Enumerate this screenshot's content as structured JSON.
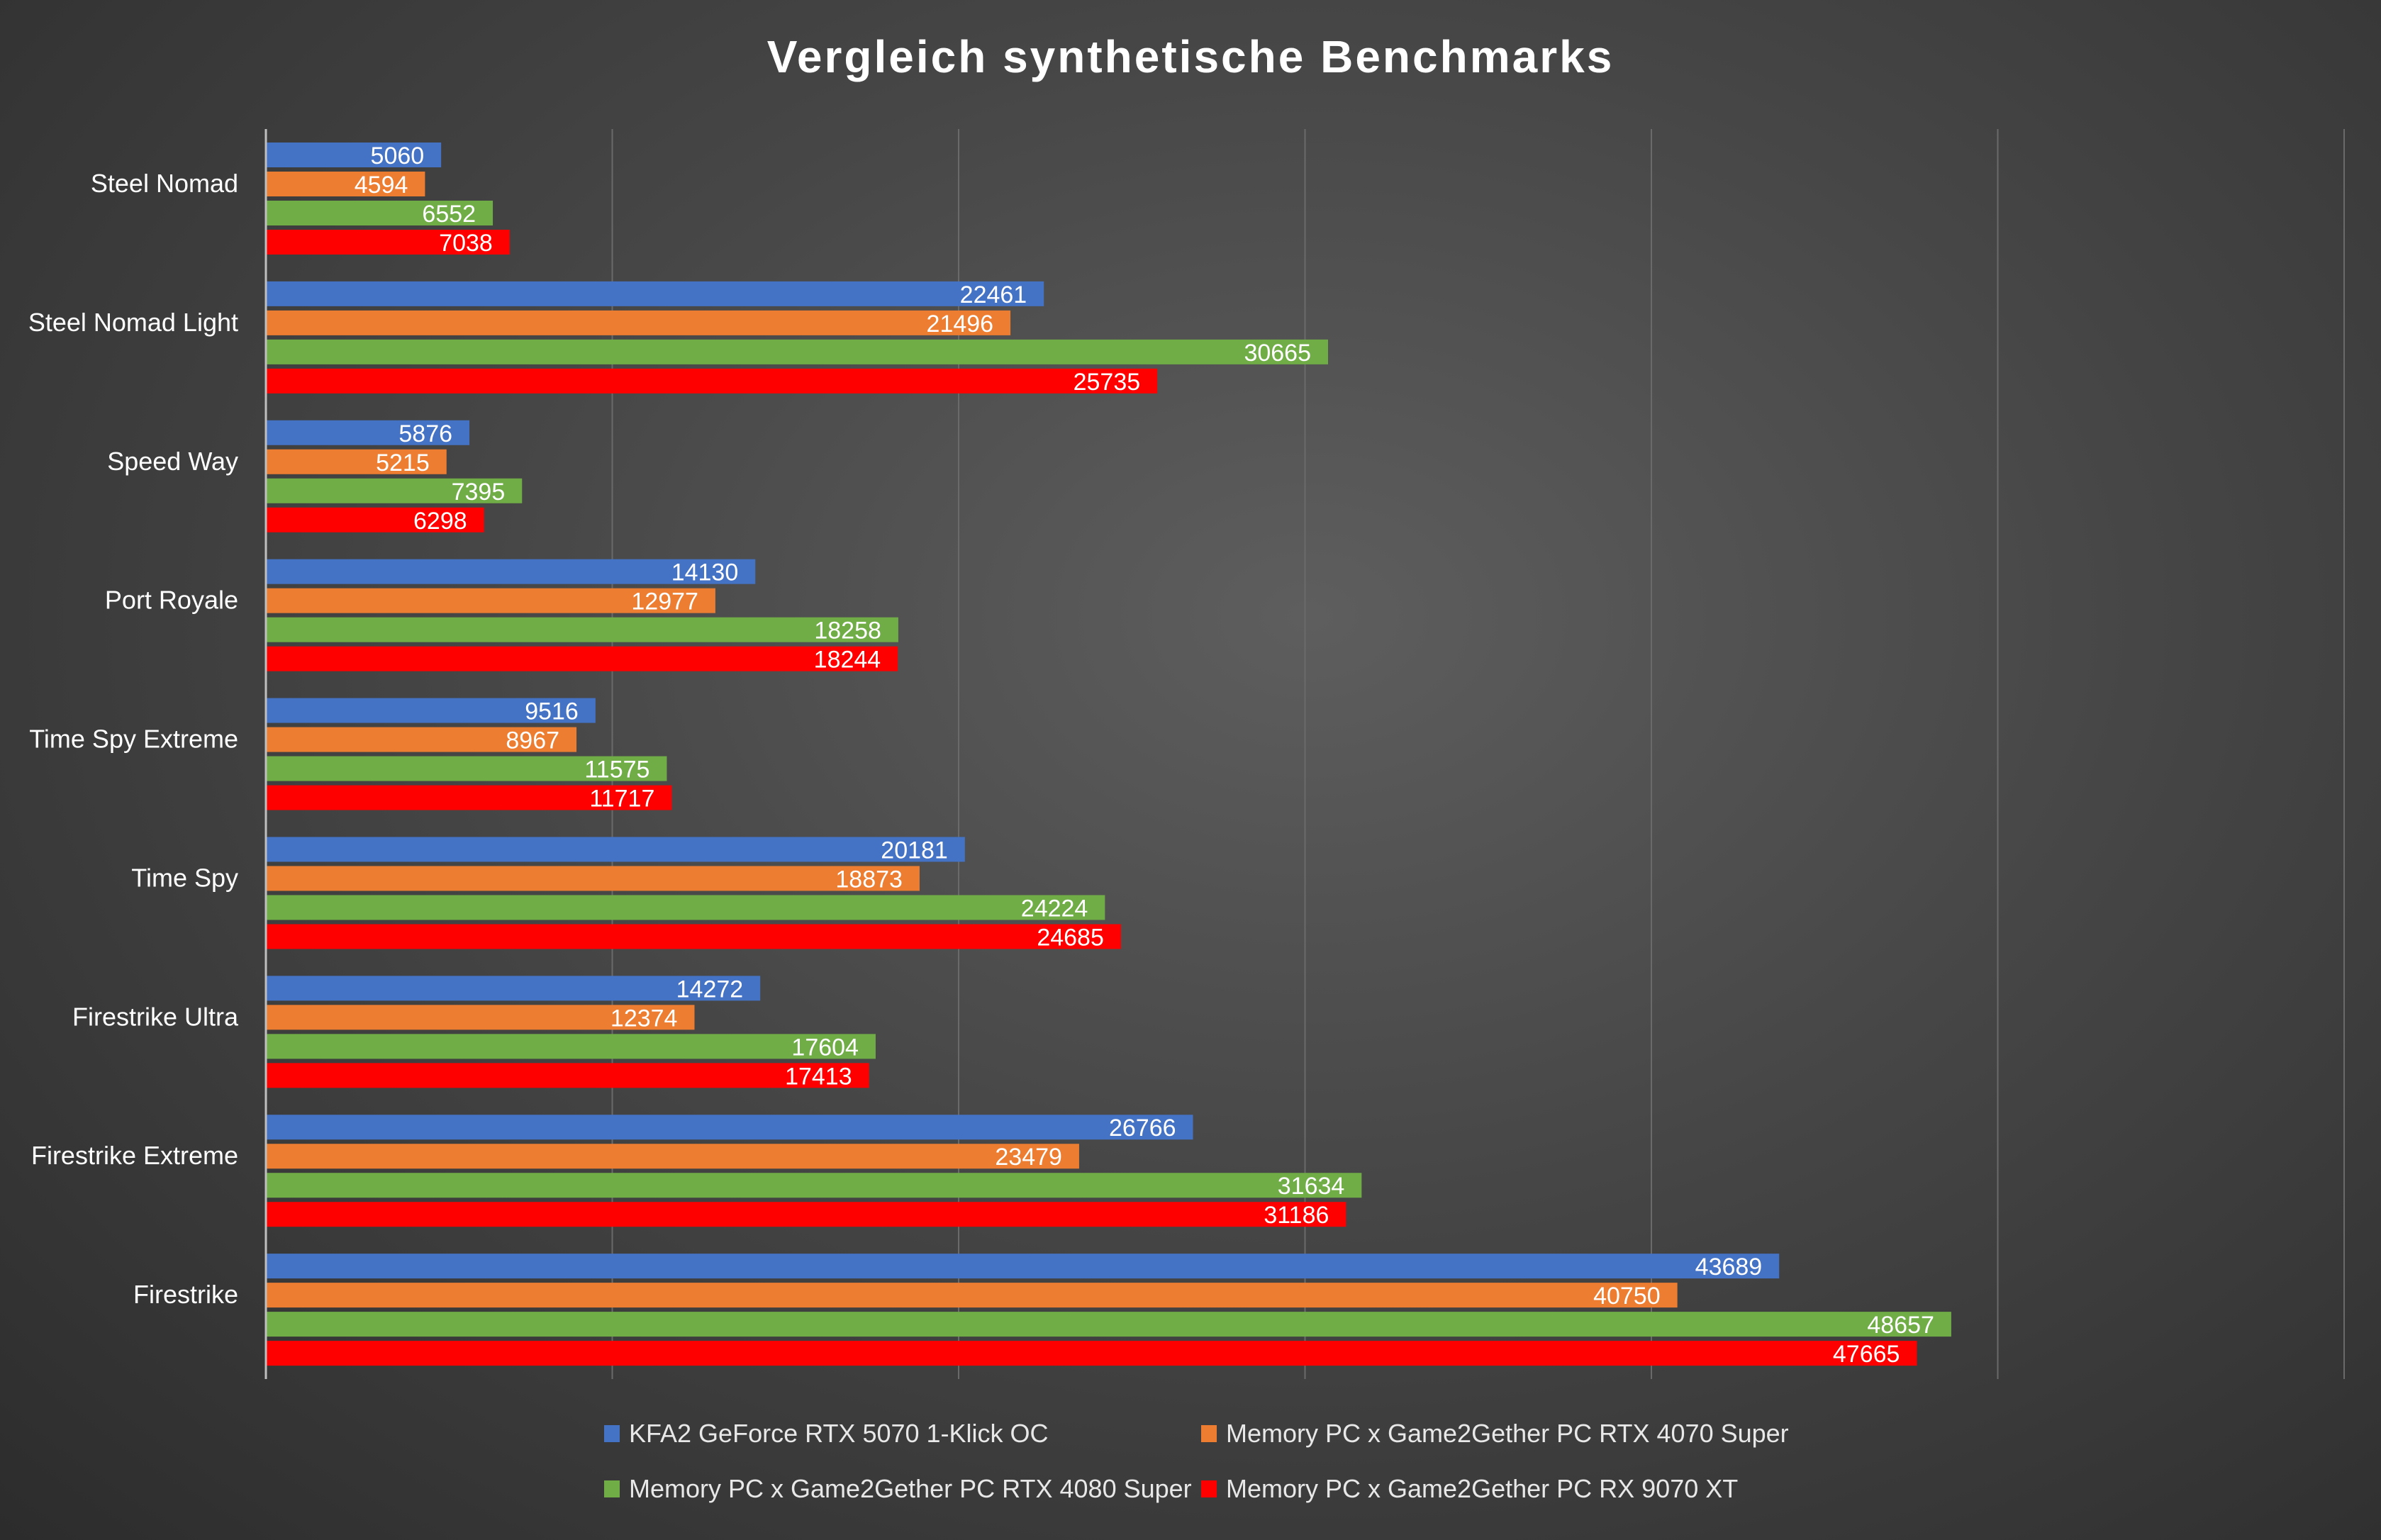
{
  "chart_data": {
    "type": "bar",
    "orientation": "horizontal",
    "title": "Vergleich synthetische Benchmarks",
    "xlabel": "",
    "ylabel": "",
    "xlim": [
      0,
      60000
    ],
    "grid": true,
    "legend_position": "bottom",
    "categories": [
      "Steel Nomad",
      "Steel Nomad Light",
      "Speed Way",
      "Port Royale",
      "Time Spy Extreme",
      "Time Spy",
      "Firestrike Ultra",
      "Firestrike Extreme",
      "Firestrike"
    ],
    "series": [
      {
        "name": "KFA2 GeForce RTX 5070 1-Klick OC",
        "color": "#4472c4",
        "values": [
          5060,
          22461,
          5876,
          14130,
          9516,
          20181,
          14272,
          26766,
          43689
        ]
      },
      {
        "name": "Memory PC x Game2Gether PC RTX 4070 Super",
        "color": "#ed7d31",
        "values": [
          4594,
          21496,
          5215,
          12977,
          8967,
          18873,
          12374,
          23479,
          40750
        ]
      },
      {
        "name": "Memory PC x Game2Gether PC RTX 4080 Super",
        "color": "#70ad47",
        "values": [
          6552,
          30665,
          7395,
          18258,
          11575,
          24224,
          17604,
          31634,
          48657
        ]
      },
      {
        "name": "Memory PC x Game2Gether PC RX 9070 XT",
        "color": "#ff0000",
        "values": [
          7038,
          25735,
          6298,
          18244,
          11717,
          24685,
          17413,
          31186,
          47665
        ]
      }
    ]
  }
}
